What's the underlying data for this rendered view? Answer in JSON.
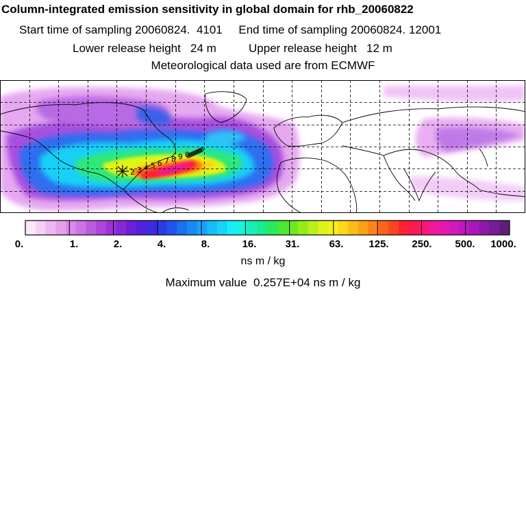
{
  "header": {
    "title": "Column-integrated emission sensitivity in global domain for rhb_20060822",
    "start_label": "Start time of sampling",
    "start_value": "20060824.  4101",
    "end_label": "End time of sampling",
    "end_value": "20060824. 12001",
    "lower_label": "Lower release height",
    "lower_value": "24 m",
    "upper_label": "Upper release height",
    "upper_value": "12 m",
    "met_line": "Meteorological data used are from ECMWF"
  },
  "map": {
    "projection": "global latitude-longitude",
    "gridlines": "dashed",
    "release_marker": "star-icon",
    "trajectory_labels": [
      "2",
      "3",
      "4",
      "5",
      "6",
      "7",
      "8",
      "9",
      "0"
    ]
  },
  "colorbar": {
    "tick_labels": [
      "0.",
      "1.",
      "2.",
      "4.",
      "8.",
      "16.",
      "31.",
      "63.",
      "125.",
      "250.",
      "500.",
      "1000."
    ],
    "colors": [
      "#fbe8fb",
      "#f4d0f6",
      "#edb8f1",
      "#e6a0ec",
      "#d98ae8",
      "#cc72e4",
      "#bd5be0",
      "#ae46dc",
      "#9a33d8",
      "#8428d8",
      "#6c1fd8",
      "#5420dc",
      "#3c2ae0",
      "#2a3ce6",
      "#1f55ec",
      "#1a6ff2",
      "#1889f6",
      "#17a2f8",
      "#17bcfa",
      "#18d4fa",
      "#19ecf6",
      "#18f4dc",
      "#18f0b4",
      "#18ec8c",
      "#28e85c",
      "#48e834",
      "#6ce81c",
      "#94ec18",
      "#b8f018",
      "#dcf418",
      "#f4f018",
      "#fcd818",
      "#fcbc18",
      "#fca018",
      "#fc8418",
      "#fc6418",
      "#fc4420",
      "#fc2430",
      "#fc1850",
      "#f81874",
      "#f01898",
      "#e418b0",
      "#d418bc",
      "#c018c0",
      "#a818b8",
      "#9018a8",
      "#781c94",
      "#601c78"
    ],
    "units": "ns m / kg"
  },
  "footer": {
    "max_label": "Maximum value",
    "max_value": "0.257E+04",
    "max_units": "ns m / kg"
  }
}
